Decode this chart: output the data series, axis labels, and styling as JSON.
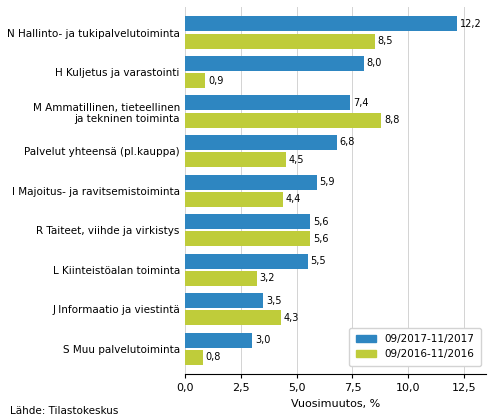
{
  "categories": [
    "N Hallinto- ja tukipalvelutoiminta",
    "H Kuljetus ja varastointi",
    "M Ammatillinen, tieteellinen\nja tekninen toiminta",
    "Palvelut yhteensä (pl.kauppa)",
    "I Majoitus- ja ravitsemistoiminta",
    "R Taiteet, viihde ja virkistys",
    "L Kiinteistöalan toiminta",
    "J Informaatio ja viestintä",
    "S Muu palvelutoiminta"
  ],
  "values_2017": [
    12.2,
    8.0,
    7.4,
    6.8,
    5.9,
    5.6,
    5.5,
    3.5,
    3.0
  ],
  "values_2016": [
    8.5,
    0.9,
    8.8,
    4.5,
    4.4,
    5.6,
    3.2,
    4.3,
    0.8
  ],
  "color_2017": "#2E86C1",
  "color_2016": "#BFCC3A",
  "xlabel": "Vuosimuutos, %",
  "legend_2017": "09/2017-11/2017",
  "legend_2016": "09/2016-11/2016",
  "source": "Lähde: Tilastokeskus",
  "xlim": [
    0,
    13.5
  ],
  "xticks": [
    0.0,
    2.5,
    5.0,
    7.5,
    10.0,
    12.5
  ]
}
